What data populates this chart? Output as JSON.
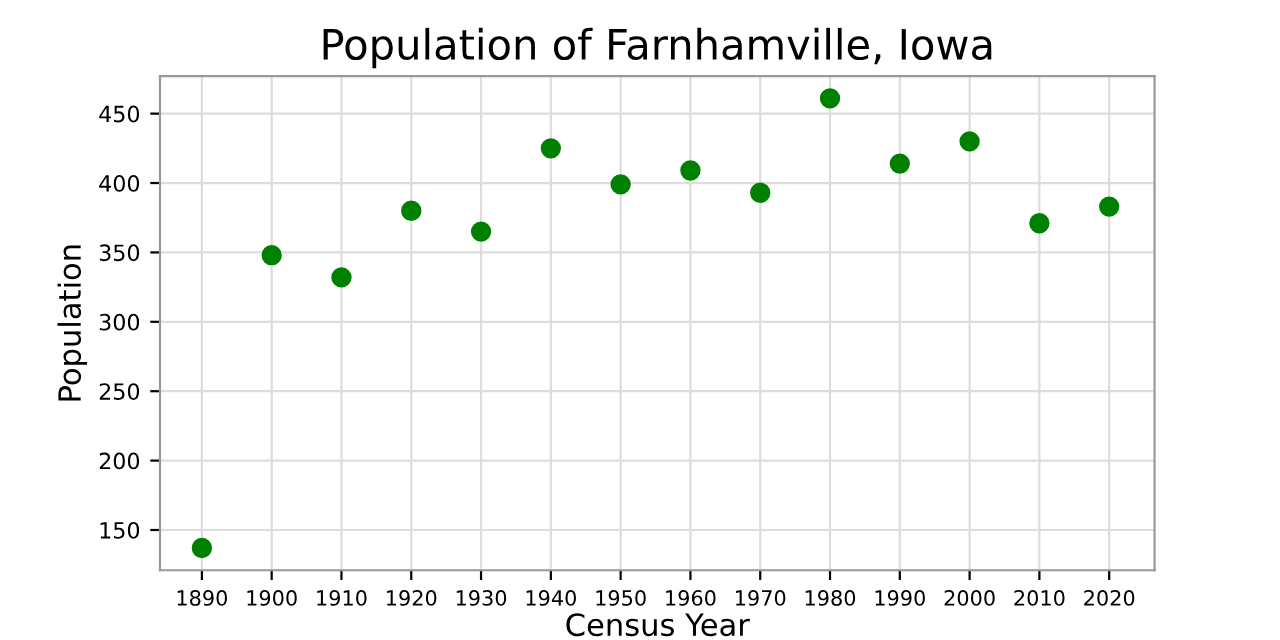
{
  "chart_data": {
    "type": "scatter",
    "title": "Population of Farnhamville, Iowa",
    "xlabel": "Census Year",
    "ylabel": "Population",
    "x": [
      1890,
      1900,
      1910,
      1920,
      1930,
      1940,
      1950,
      1960,
      1970,
      1980,
      1990,
      2000,
      2010,
      2020
    ],
    "values": [
      137,
      348,
      332,
      380,
      365,
      425,
      399,
      409,
      393,
      461,
      414,
      430,
      371,
      383
    ],
    "color": "#008000",
    "marker": "circle",
    "xlim": [
      1884,
      2026.5
    ],
    "xticks": [
      1890,
      1900,
      1910,
      1920,
      1930,
      1940,
      1950,
      1960,
      1970,
      1980,
      1990,
      2000,
      2010,
      2020
    ],
    "ylim": [
      121,
      477
    ],
    "yticks": [
      150,
      200,
      250,
      300,
      350,
      400,
      450
    ],
    "grid": true
  }
}
